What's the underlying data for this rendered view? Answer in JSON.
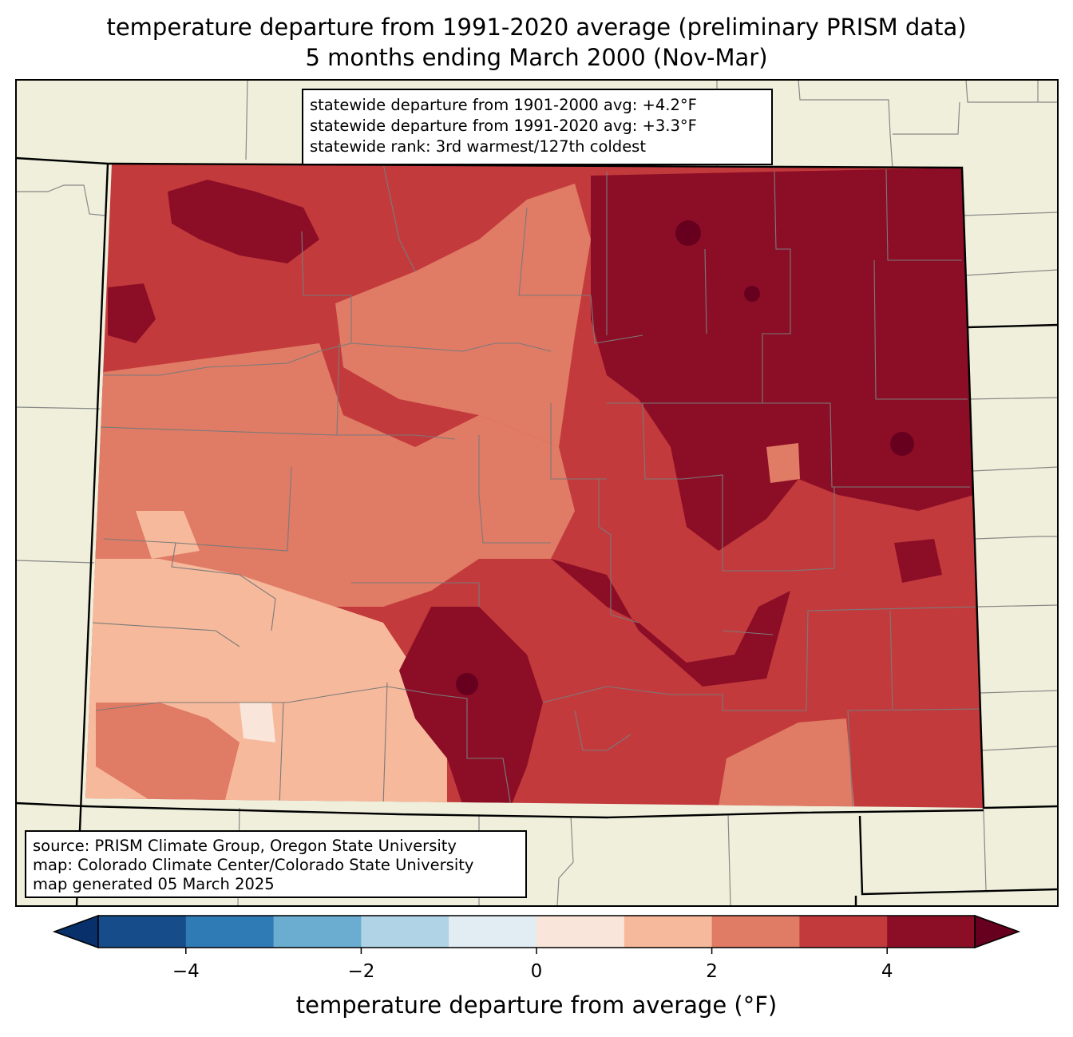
{
  "title": {
    "line1": "temperature departure from 1991-2020 average (preliminary PRISM data)",
    "line2": "5 months ending March 2000 (Nov-Mar)"
  },
  "stats_box": {
    "line1": "statewide departure from 1901-2000 avg: +4.2°F",
    "line2": "statewide departure from 1991-2020 avg: +3.3°F",
    "line3": "statewide rank: 3rd warmest/127th coldest"
  },
  "source_box": {
    "line1": "source: PRISM Climate Group, Oregon State University",
    "line2": "map: Colorado Climate Center/Colorado State University",
    "line3": "map generated 05 March 2025"
  },
  "colorbar": {
    "label": "temperature departure from average (°F)",
    "ticks": [
      "−4",
      "−2",
      "0",
      "2",
      "4"
    ],
    "tick_values": [
      -4,
      -2,
      0,
      2,
      4
    ],
    "range": [
      -5,
      5
    ],
    "colors": [
      "#08306b",
      "#154c89",
      "#2f7bb6",
      "#6aadd0",
      "#b0d4e6",
      "#e2edf3",
      "#fae5da",
      "#f7b99b",
      "#e07b65",
      "#c33a3c",
      "#8c0e26",
      "#67001f"
    ]
  },
  "map_colors": {
    "land": "#efefdb",
    "level_1_2": "#f7b99b",
    "level_2_3": "#e07b65",
    "level_3_4": "#c33a3c",
    "level_4_5": "#8c0e26",
    "level_5_plus": "#67001f",
    "level_0_1": "#fae5da"
  }
}
